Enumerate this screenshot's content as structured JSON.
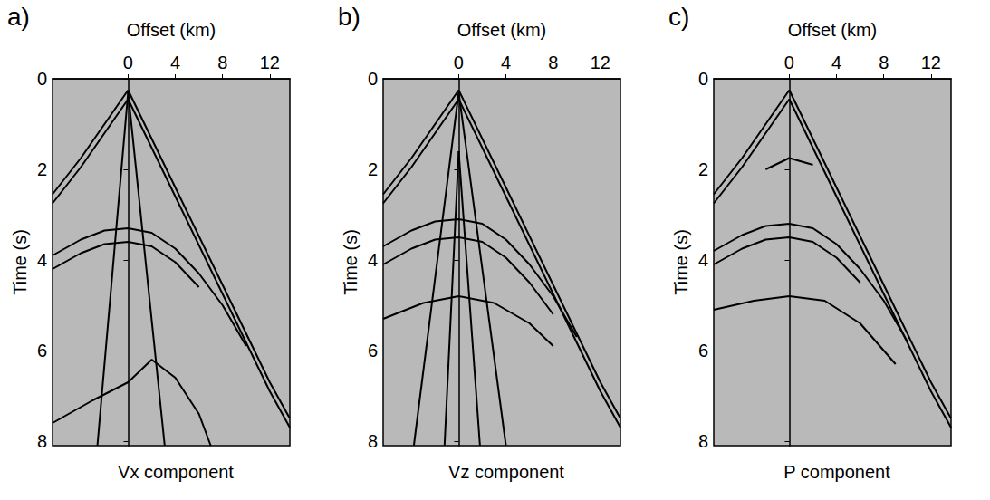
{
  "chart_data": [
    {
      "type": "line",
      "panel": "a)",
      "title": "Vx component",
      "xlabel": "Offset (km)",
      "ylabel": "Time (s)",
      "xlim": [
        -6.4,
        13.7
      ],
      "xticks": [
        0,
        4,
        8,
        12
      ],
      "ylim": [
        0,
        8.1
      ],
      "yticks": [
        0,
        2,
        4,
        6,
        8
      ],
      "grid": false,
      "series": [
        {
          "color": "#000000",
          "x": [
            0,
            4,
            8,
            12,
            13.7
          ],
          "values": [
            0.25,
            2.4,
            4.55,
            6.7,
            7.5
          ]
        },
        {
          "color": "#000000",
          "x": [
            0,
            4,
            8,
            12,
            13.7
          ],
          "values": [
            0.45,
            2.6,
            4.75,
            6.9,
            7.7
          ]
        },
        {
          "color": "#000000",
          "x": [
            0,
            -2,
            -4,
            -6.4
          ],
          "values": [
            0.25,
            1.0,
            1.75,
            2.55
          ]
        },
        {
          "color": "#000000",
          "x": [
            0,
            -2,
            -4,
            -6.4
          ],
          "values": [
            0.45,
            1.2,
            1.95,
            2.75
          ]
        },
        {
          "color": "#000000",
          "x": [
            -6.4,
            -4,
            -2,
            0,
            2,
            4,
            6,
            8,
            10
          ],
          "values": [
            3.9,
            3.55,
            3.35,
            3.3,
            3.4,
            3.75,
            4.3,
            5.0,
            5.9
          ]
        },
        {
          "color": "#000000",
          "x": [
            -6.4,
            -4,
            -2,
            0,
            2,
            4,
            6
          ],
          "values": [
            4.2,
            3.85,
            3.65,
            3.6,
            3.7,
            4.05,
            4.6
          ]
        },
        {
          "color": "#000000",
          "x": [
            -6.4,
            -3,
            0,
            2,
            4,
            6,
            7
          ],
          "values": [
            7.6,
            7.1,
            6.7,
            6.2,
            6.6,
            7.4,
            8.1
          ]
        },
        {
          "color": "#000000",
          "x": [
            0,
            -2.6
          ],
          "values": [
            0.3,
            8.1
          ]
        },
        {
          "color": "#000000",
          "x": [
            0,
            3.1
          ],
          "values": [
            0.3,
            8.1
          ]
        }
      ]
    },
    {
      "type": "line",
      "panel": "b)",
      "title": "Vz component",
      "xlabel": "Offset (km)",
      "ylabel": "Time (s)",
      "xlim": [
        -6.4,
        13.7
      ],
      "xticks": [
        0,
        4,
        8,
        12
      ],
      "ylim": [
        0,
        8.1
      ],
      "yticks": [
        0,
        2,
        4,
        6,
        8
      ],
      "grid": false,
      "series": [
        {
          "color": "#000000",
          "x": [
            0,
            4,
            8,
            12,
            13.7
          ],
          "values": [
            0.25,
            2.4,
            4.55,
            6.7,
            7.5
          ]
        },
        {
          "color": "#000000",
          "x": [
            0,
            4,
            8,
            12,
            13.7
          ],
          "values": [
            0.45,
            2.6,
            4.75,
            6.9,
            7.7
          ]
        },
        {
          "color": "#000000",
          "x": [
            0,
            -2,
            -4,
            -6.4
          ],
          "values": [
            0.25,
            1.0,
            1.75,
            2.55
          ]
        },
        {
          "color": "#000000",
          "x": [
            0,
            -2,
            -4,
            -6.4
          ],
          "values": [
            0.45,
            1.2,
            1.95,
            2.75
          ]
        },
        {
          "color": "#000000",
          "x": [
            -6.4,
            -4,
            -2,
            0,
            2,
            4,
            6,
            8,
            10
          ],
          "values": [
            3.7,
            3.35,
            3.15,
            3.1,
            3.2,
            3.55,
            4.1,
            4.8,
            5.7
          ]
        },
        {
          "color": "#000000",
          "x": [
            -6.4,
            -4,
            -2,
            0,
            2,
            4,
            6,
            8
          ],
          "values": [
            4.1,
            3.75,
            3.55,
            3.5,
            3.6,
            3.95,
            4.5,
            5.2
          ]
        },
        {
          "color": "#000000",
          "x": [
            -6.4,
            -3,
            0,
            3,
            6,
            8
          ],
          "values": [
            5.3,
            4.95,
            4.8,
            4.95,
            5.4,
            5.9
          ]
        },
        {
          "color": "#000000",
          "x": [
            0,
            -3.8
          ],
          "values": [
            0.3,
            8.1
          ]
        },
        {
          "color": "#000000",
          "x": [
            0,
            4.0
          ],
          "values": [
            0.3,
            8.1
          ]
        },
        {
          "color": "#000000",
          "x": [
            0,
            -1.2
          ],
          "values": [
            1.6,
            8.1
          ]
        },
        {
          "color": "#000000",
          "x": [
            0,
            1.8
          ],
          "values": [
            1.6,
            8.1
          ]
        }
      ]
    },
    {
      "type": "line",
      "panel": "c)",
      "title": "P component",
      "xlabel": "Offset (km)",
      "ylabel": "Time (s)",
      "xlim": [
        -6.4,
        13.7
      ],
      "xticks": [
        0,
        4,
        8,
        12
      ],
      "ylim": [
        0,
        8.1
      ],
      "yticks": [
        0,
        2,
        4,
        6,
        8
      ],
      "grid": false,
      "series": [
        {
          "color": "#000000",
          "x": [
            0,
            4,
            8,
            12,
            13.7
          ],
          "values": [
            0.25,
            2.4,
            4.55,
            6.7,
            7.5
          ]
        },
        {
          "color": "#000000",
          "x": [
            0,
            4,
            8,
            12,
            13.7
          ],
          "values": [
            0.45,
            2.6,
            4.75,
            6.9,
            7.7
          ]
        },
        {
          "color": "#000000",
          "x": [
            0,
            -2,
            -4,
            -6.4
          ],
          "values": [
            0.25,
            1.0,
            1.75,
            2.55
          ]
        },
        {
          "color": "#000000",
          "x": [
            0,
            -2,
            -4,
            -6.4
          ],
          "values": [
            0.45,
            1.2,
            1.95,
            2.75
          ]
        },
        {
          "color": "#000000",
          "x": [
            -2,
            0,
            2
          ],
          "values": [
            2.0,
            1.75,
            1.9
          ]
        },
        {
          "color": "#000000",
          "x": [
            -6.4,
            -4,
            -2,
            0,
            2,
            4,
            6,
            8,
            10
          ],
          "values": [
            3.8,
            3.45,
            3.25,
            3.2,
            3.3,
            3.65,
            4.2,
            4.9,
            5.8
          ]
        },
        {
          "color": "#000000",
          "x": [
            -6.4,
            -4,
            -2,
            0,
            2,
            4,
            6
          ],
          "values": [
            4.1,
            3.75,
            3.55,
            3.5,
            3.6,
            3.95,
            4.5
          ]
        },
        {
          "color": "#000000",
          "x": [
            -6.4,
            -3,
            0,
            3,
            6,
            9
          ],
          "values": [
            5.1,
            4.9,
            4.8,
            4.9,
            5.4,
            6.3
          ]
        }
      ]
    }
  ]
}
